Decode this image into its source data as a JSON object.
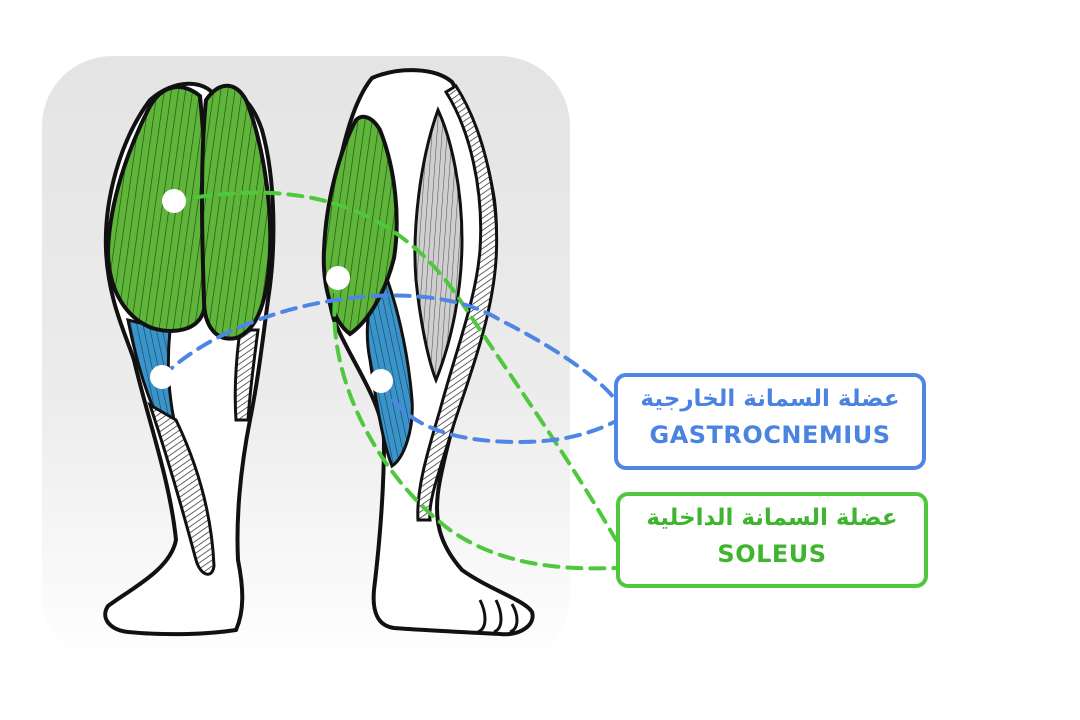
{
  "labels": {
    "gastrocnemius": {
      "arabic": "عضلة السمانة الخارجية",
      "english": "GASTROCNEMIUS",
      "color": "#4f86e6"
    },
    "soleus": {
      "arabic": "عضلة السمانة الداخلية",
      "english": "SOLEUS",
      "color": "#4fc83d"
    }
  },
  "colors": {
    "gastrocnemius_muscle": "#5fb43a",
    "soleus_muscle": "#3a93c9",
    "outline": "#111111",
    "panel": "#e9e9e9"
  }
}
